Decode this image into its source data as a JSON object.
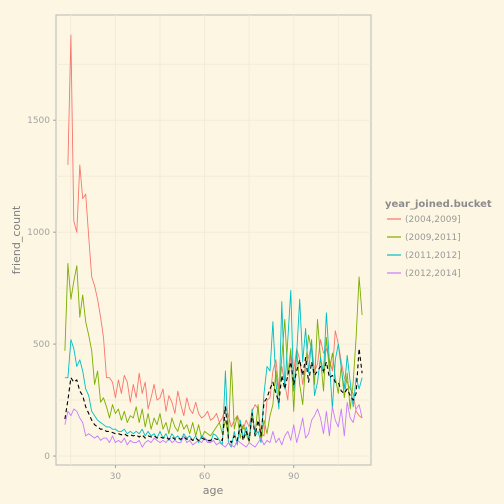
{
  "chart_data": {
    "type": "line",
    "xlabel": "age",
    "ylabel": "friend_count",
    "xlim": [
      10,
      116
    ],
    "ylim": [
      -40,
      1970
    ],
    "x_ticks": [
      30,
      60,
      90
    ],
    "y_ticks": [
      0,
      500,
      1000,
      1500
    ],
    "grid": true,
    "legend": {
      "title": "year_joined.bucket",
      "placement": "right"
    },
    "series": [
      {
        "name": "(2004,2009]",
        "color": "#f8766d",
        "x": [
          14,
          15,
          16,
          17,
          18,
          19,
          20,
          21,
          22,
          23,
          24,
          25,
          26,
          27,
          28,
          29,
          30,
          31,
          32,
          33,
          34,
          35,
          36,
          37,
          38,
          39,
          40,
          41,
          42,
          43,
          44,
          45,
          46,
          47,
          48,
          49,
          50,
          51,
          52,
          53,
          54,
          55,
          56,
          57,
          58,
          59,
          60,
          61,
          62,
          63,
          64,
          65,
          66,
          67,
          68,
          69,
          70,
          71,
          72,
          73,
          74,
          75,
          76,
          77,
          78,
          79,
          80,
          81,
          82,
          83,
          84,
          85,
          86,
          87,
          88,
          89,
          90,
          91,
          92,
          93,
          94,
          95,
          96,
          97,
          98,
          99,
          100,
          101,
          102,
          103,
          104,
          105,
          106,
          107,
          108,
          109,
          110,
          111,
          112,
          113
        ],
        "y": [
          1300,
          1880,
          1050,
          1000,
          1300,
          1150,
          1170,
          980,
          800,
          760,
          700,
          620,
          530,
          350,
          350,
          330,
          260,
          340,
          280,
          360,
          330,
          240,
          320,
          260,
          370,
          280,
          330,
          210,
          260,
          320,
          250,
          260,
          300,
          200,
          270,
          240,
          190,
          290,
          230,
          180,
          260,
          210,
          190,
          240,
          190,
          170,
          180,
          200,
          160,
          170,
          190,
          150,
          170,
          220,
          180,
          130,
          160,
          180,
          150,
          120,
          160,
          130,
          200,
          230,
          210,
          100,
          90,
          250,
          260,
          380,
          430,
          300,
          400,
          320,
          250,
          460,
          380,
          480,
          430,
          320,
          410,
          440,
          500,
          380,
          410,
          520,
          460,
          480,
          430,
          380,
          560,
          500,
          420,
          350,
          330,
          300,
          280,
          200,
          180,
          170
        ]
      },
      {
        "name": "(2009,2011]",
        "color": "#7cae00",
        "x": [
          13,
          14,
          15,
          16,
          17,
          18,
          19,
          20,
          21,
          22,
          23,
          24,
          25,
          26,
          27,
          28,
          29,
          30,
          31,
          32,
          33,
          34,
          35,
          36,
          37,
          38,
          39,
          40,
          41,
          42,
          43,
          44,
          45,
          46,
          47,
          48,
          49,
          50,
          51,
          52,
          53,
          54,
          55,
          56,
          57,
          58,
          59,
          60,
          61,
          62,
          63,
          64,
          65,
          66,
          67,
          68,
          69,
          70,
          71,
          72,
          73,
          74,
          75,
          76,
          77,
          78,
          79,
          80,
          81,
          82,
          83,
          84,
          85,
          86,
          87,
          88,
          89,
          90,
          91,
          92,
          93,
          94,
          95,
          96,
          97,
          98,
          99,
          100,
          101,
          102,
          103,
          104,
          105,
          106,
          107,
          108,
          109,
          110,
          111,
          112,
          113
        ],
        "y": [
          470,
          860,
          700,
          780,
          850,
          620,
          720,
          600,
          540,
          470,
          320,
          380,
          240,
          260,
          220,
          170,
          230,
          190,
          210,
          160,
          200,
          150,
          180,
          170,
          220,
          150,
          210,
          130,
          190,
          120,
          170,
          140,
          190,
          120,
          150,
          100,
          170,
          130,
          110,
          160,
          120,
          140,
          100,
          150,
          90,
          140,
          80,
          110,
          100,
          90,
          110,
          130,
          150,
          100,
          160,
          90,
          420,
          120,
          180,
          80,
          140,
          100,
          60,
          180,
          100,
          230,
          60,
          160,
          100,
          180,
          230,
          380,
          270,
          440,
          610,
          360,
          480,
          200,
          470,
          320,
          230,
          410,
          540,
          470,
          320,
          610,
          440,
          290,
          530,
          380,
          460,
          350,
          280,
          400,
          260,
          370,
          210,
          330,
          530,
          800,
          630
        ]
      },
      {
        "name": "(2011,2012]",
        "color": "#00bfc4",
        "x": [
          13,
          14,
          15,
          16,
          17,
          18,
          19,
          20,
          21,
          22,
          23,
          24,
          25,
          26,
          27,
          28,
          29,
          30,
          31,
          32,
          33,
          34,
          35,
          36,
          37,
          38,
          39,
          40,
          41,
          42,
          43,
          44,
          45,
          46,
          47,
          48,
          49,
          50,
          51,
          52,
          53,
          54,
          55,
          56,
          57,
          58,
          59,
          60,
          61,
          62,
          63,
          64,
          65,
          66,
          67,
          68,
          69,
          70,
          71,
          72,
          73,
          74,
          75,
          76,
          77,
          78,
          79,
          80,
          81,
          82,
          83,
          84,
          85,
          86,
          87,
          88,
          89,
          90,
          91,
          92,
          93,
          94,
          95,
          96,
          97,
          98,
          99,
          100,
          101,
          102,
          103,
          104,
          105,
          106,
          107,
          108,
          109,
          110,
          111,
          112,
          113
        ],
        "y": [
          350,
          350,
          520,
          480,
          400,
          430,
          380,
          300,
          270,
          200,
          180,
          160,
          150,
          140,
          130,
          130,
          120,
          120,
          110,
          110,
          120,
          100,
          110,
          100,
          110,
          100,
          120,
          90,
          110,
          90,
          100,
          80,
          110,
          80,
          100,
          70,
          100,
          80,
          90,
          70,
          100,
          80,
          90,
          70,
          90,
          60,
          90,
          80,
          70,
          60,
          100,
          90,
          70,
          50,
          380,
          60,
          40,
          110,
          50,
          160,
          80,
          130,
          70,
          210,
          90,
          110,
          60,
          280,
          400,
          380,
          600,
          330,
          210,
          690,
          300,
          520,
          740,
          290,
          460,
          700,
          420,
          570,
          370,
          520,
          270,
          330,
          440,
          370,
          640,
          420,
          210,
          430,
          500,
          390,
          300,
          450,
          330,
          220,
          350,
          300,
          350
        ]
      },
      {
        "name": "(2012,2014]",
        "color": "#c77cff",
        "x": [
          13,
          14,
          15,
          16,
          17,
          18,
          19,
          20,
          21,
          22,
          23,
          24,
          25,
          26,
          27,
          28,
          29,
          30,
          31,
          32,
          33,
          34,
          35,
          36,
          37,
          38,
          39,
          40,
          41,
          42,
          43,
          44,
          45,
          46,
          47,
          48,
          49,
          50,
          51,
          52,
          53,
          54,
          55,
          56,
          57,
          58,
          59,
          60,
          61,
          62,
          63,
          64,
          65,
          66,
          67,
          68,
          69,
          70,
          71,
          72,
          73,
          74,
          75,
          76,
          77,
          78,
          79,
          80,
          81,
          82,
          83,
          84,
          85,
          86,
          87,
          88,
          89,
          90,
          91,
          92,
          93,
          94,
          95,
          96,
          97,
          98,
          99,
          100,
          101,
          102,
          103,
          104,
          105,
          106,
          107,
          108,
          109,
          110,
          111,
          112,
          113
        ],
        "y": [
          140,
          200,
          180,
          210,
          200,
          170,
          150,
          90,
          100,
          90,
          80,
          90,
          70,
          80,
          80,
          60,
          90,
          60,
          70,
          60,
          80,
          50,
          70,
          60,
          60,
          70,
          40,
          60,
          70,
          60,
          80,
          70,
          60,
          70,
          60,
          80,
          60,
          70,
          60,
          60,
          90,
          60,
          70,
          50,
          60,
          70,
          60,
          80,
          60,
          60,
          70,
          50,
          60,
          50,
          40,
          60,
          50,
          40,
          70,
          60,
          50,
          40,
          60,
          50,
          40,
          60,
          80,
          50,
          70,
          60,
          110,
          60,
          80,
          50,
          90,
          110,
          70,
          140,
          60,
          110,
          170,
          80,
          100,
          160,
          180,
          210,
          170,
          100,
          200,
          90,
          220,
          160,
          130,
          210,
          90,
          240,
          170,
          150,
          210,
          230,
          170
        ]
      },
      {
        "name": "",
        "color": "#000000",
        "dashed": true,
        "x": [
          13,
          14,
          15,
          16,
          17,
          18,
          19,
          20,
          21,
          22,
          23,
          24,
          25,
          26,
          27,
          28,
          29,
          30,
          31,
          32,
          33,
          34,
          35,
          36,
          37,
          38,
          39,
          40,
          41,
          42,
          43,
          44,
          45,
          46,
          47,
          48,
          49,
          50,
          51,
          52,
          53,
          54,
          55,
          56,
          57,
          58,
          59,
          60,
          61,
          62,
          63,
          64,
          65,
          66,
          67,
          68,
          69,
          70,
          71,
          72,
          73,
          74,
          75,
          76,
          77,
          78,
          79,
          80,
          81,
          82,
          83,
          84,
          85,
          86,
          87,
          88,
          89,
          90,
          91,
          92,
          93,
          94,
          95,
          96,
          97,
          98,
          99,
          100,
          101,
          102,
          103,
          104,
          105,
          106,
          107,
          108,
          109,
          110,
          111,
          112,
          113
        ],
        "y": [
          165,
          250,
          350,
          330,
          340,
          290,
          270,
          220,
          190,
          160,
          140,
          130,
          120,
          120,
          110,
          110,
          105,
          100,
          100,
          95,
          100,
          90,
          95,
          90,
          95,
          85,
          95,
          80,
          90,
          85,
          90,
          80,
          85,
          80,
          85,
          75,
          85,
          75,
          80,
          75,
          85,
          75,
          80,
          70,
          80,
          70,
          80,
          75,
          70,
          70,
          80,
          75,
          75,
          70,
          220,
          80,
          60,
          90,
          70,
          140,
          70,
          110,
          70,
          190,
          90,
          160,
          90,
          240,
          260,
          300,
          330,
          280,
          240,
          360,
          300,
          360,
          420,
          320,
          380,
          430,
          360,
          440,
          330,
          420,
          360,
          380,
          400,
          380,
          420,
          350,
          360,
          330,
          330,
          290,
          280,
          300,
          270,
          250,
          280,
          480,
          370
        ]
      }
    ]
  }
}
